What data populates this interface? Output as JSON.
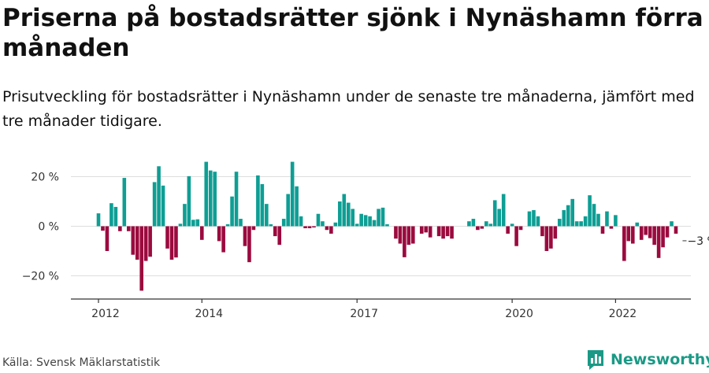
{
  "title": "Priserna på bostadsrätter sjönk i Nynäshamn förra månaden",
  "subtitle": "Prisutveckling för bostadsrätter i Nynäshamn under de senaste tre månaderna, jämfört med tre månader tidigare.",
  "source": "Källa: Svensk Mäklarstatistik",
  "brand": "Newsworthy",
  "colors": {
    "positive": "#0e9e94",
    "negative": "#9b0a3e",
    "brand": "#1a9a86"
  },
  "chart_data": {
    "type": "bar",
    "x_start": "2012-01",
    "x_end": "2023-05",
    "x_ticks": [
      {
        "label": "2012",
        "month": "2012-01"
      },
      {
        "label": "2014",
        "month": "2014-01"
      },
      {
        "label": "2017",
        "month": "2017-01"
      },
      {
        "label": "2020",
        "month": "2020-01"
      },
      {
        "label": "2022",
        "month": "2022-01"
      }
    ],
    "ylim": [
      -30,
      30
    ],
    "y_ticks": [
      {
        "label": "20 %",
        "value": 20
      },
      {
        "label": "0 %",
        "value": 0
      },
      {
        "label": "−20 %",
        "value": -20
      }
    ],
    "grid": true,
    "annotation": {
      "label": "−3 %",
      "month": "2023-04",
      "value": -3
    },
    "values": [
      5.2,
      -1.8,
      -10,
      9.3,
      7.8,
      -2,
      19.5,
      -2,
      -11.5,
      -13.5,
      -26,
      -14,
      -12.3,
      17.8,
      24.2,
      16.4,
      -9,
      -13.5,
      -12.6,
      1,
      9,
      20.2,
      2.6,
      2.8,
      -5.5,
      26,
      22.5,
      22,
      -6,
      -10.5,
      0.8,
      12,
      22,
      3,
      -8,
      -14.5,
      -1.5,
      20.5,
      17,
      9,
      0.8,
      -4,
      -7.5,
      3,
      13,
      26,
      16.1,
      4,
      -0.8,
      -0.8,
      -0.5,
      5,
      2,
      -1.5,
      -3,
      1.5,
      10,
      13,
      9.5,
      7,
      1,
      5,
      4.5,
      4,
      2.5,
      7,
      7.5,
      0.8,
      0,
      -5,
      -7,
      -12.5,
      -7.5,
      -7,
      0,
      -3,
      -2.5,
      -4.5,
      0,
      -4,
      -5,
      -4,
      -5,
      0,
      0,
      0,
      2,
      3,
      -1.5,
      -1,
      2,
      1,
      10.5,
      7,
      13,
      -3,
      1,
      -8,
      -1.5,
      0,
      6,
      6.5,
      4,
      -4,
      -10,
      -9,
      -5,
      3,
      6.5,
      8.5,
      11,
      2,
      2,
      4,
      12.5,
      9,
      5,
      -3,
      6,
      -1,
      4.5,
      0,
      -14,
      -6,
      -7,
      1.5,
      -5.5,
      -3.5,
      -4.8,
      -7.5,
      -12.8,
      -8.5,
      -4.5,
      2,
      -3
    ]
  }
}
